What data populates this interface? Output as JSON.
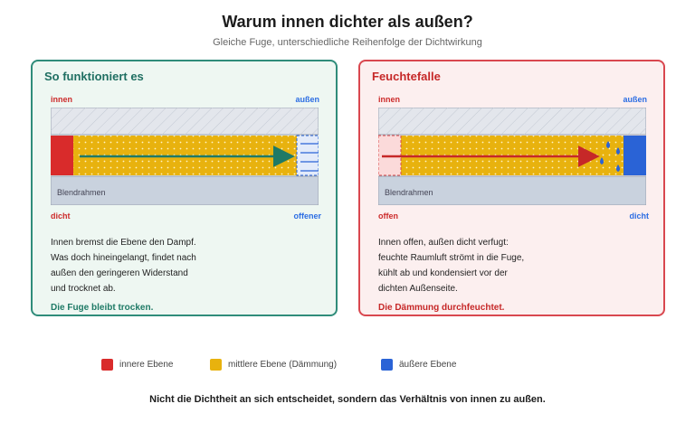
{
  "header": {
    "title": "Warum innen dichter als außen?",
    "subtitle": "Gleiche Fuge, unterschiedliche Reihenfolge der Dichtwirkung"
  },
  "panels": {
    "good": {
      "title": "So funktioniert es",
      "label_inside": "innen",
      "label_outside": "außen",
      "frame_label": "Blendrahmen",
      "inner_state": "dicht",
      "outer_state": "offener",
      "description": [
        "Innen bremst die Ebene den Dampf.",
        "Was doch hineingelangt, findet nach",
        "außen den geringeren Widerstand",
        "und trocknet ab."
      ],
      "conclusion": "Die Fuge bleibt trocken."
    },
    "bad": {
      "title": "Feuchtefalle",
      "label_inside": "innen",
      "label_outside": "außen",
      "frame_label": "Blendrahmen",
      "inner_state": "offen",
      "outer_state": "dicht",
      "description": [
        "Innen offen, außen dicht verfugt:",
        "feuchte Raumluft strömt in die Fuge,",
        "kühlt ab und kondensiert vor der",
        "dichten Außenseite."
      ],
      "conclusion": "Die Dämmung durchfeuchtet."
    }
  },
  "legend": [
    {
      "label": "innere Ebene",
      "color": "#d92b2b"
    },
    {
      "label": "mittlere Ebene (Dämmung)",
      "color": "#e8b20e"
    },
    {
      "label": "äußere Ebene",
      "color": "#2a63d6"
    }
  ],
  "footer": "Nicht die Dichtheit an sich entscheidet, sondern das Verhältnis von innen zu außen.",
  "colors": {
    "good_border": "#2f8c7a",
    "bad_border": "#d9474f",
    "insulation": "#e8b20e",
    "inner_layer": "#d92b2b",
    "outer_layer": "#2a63d6",
    "masonry": "#dfe3ea",
    "frame": "#c9d2de",
    "good_arrow": "#1f7a66",
    "bad_arrow": "#c62828"
  }
}
